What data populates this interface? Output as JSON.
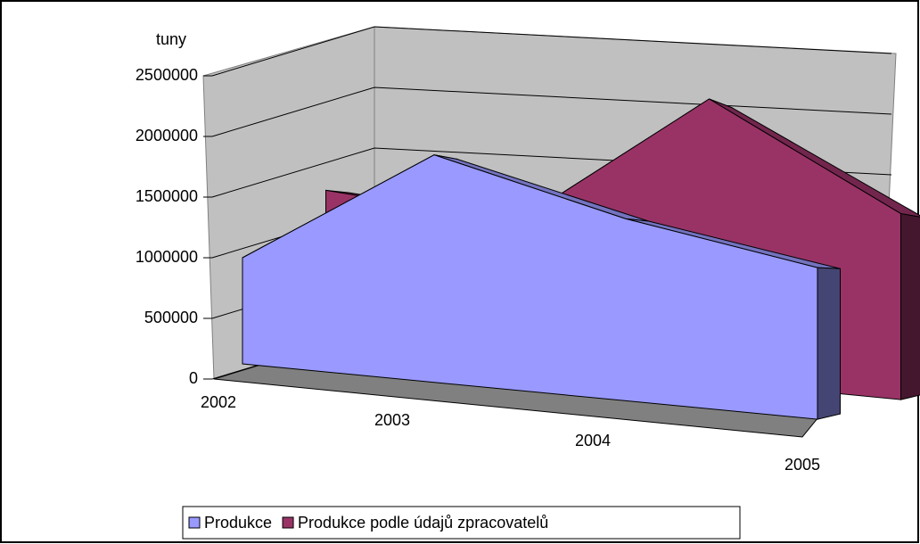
{
  "chart_data": {
    "type": "area3d",
    "y_label": "tuny",
    "categories": [
      "2002",
      "2003",
      "2004",
      "2005"
    ],
    "series": [
      {
        "name": "Produkce",
        "color": "#9999ff",
        "values": [
          700000,
          1500000,
          1200000,
          1000000
        ]
      },
      {
        "name": "Produkce podle údajů zpracovatelů",
        "color": "#993366",
        "values": [
          1200000,
          1100000,
          2200000,
          1450000
        ]
      }
    ],
    "ylim": [
      0,
      2500000
    ],
    "yticks": [
      0,
      500000,
      1000000,
      1500000,
      2000000,
      2500000
    ],
    "grid": true,
    "legend": "bottom"
  }
}
